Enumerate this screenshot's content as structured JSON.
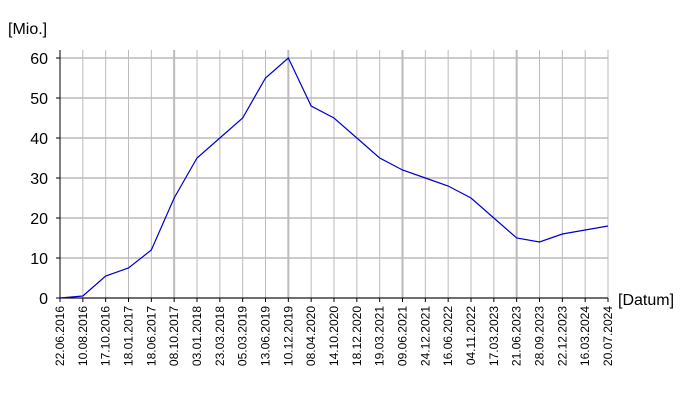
{
  "chart_data": {
    "type": "line",
    "y_label": "[Mio.]",
    "x_label": "[Datum]",
    "categories": [
      "22.06.2016",
      "10.08.2016",
      "17.10.2016",
      "18.01.2017",
      "18.06.2017",
      "08.10.2017",
      "03.01.2018",
      "23.03.2018",
      "05.03.2019",
      "13.06.2019",
      "10.12.2019",
      "08.04.2020",
      "14.10.2020",
      "18.12.2020",
      "19.03.2021",
      "09.06.2021",
      "24.12.2021",
      "16.06.2022",
      "04.11.2022",
      "17.03.2023",
      "21.06.2023",
      "28.09.2023",
      "22.12.2023",
      "16.03.2024",
      "20.07.2024"
    ],
    "values": [
      0,
      0.5,
      5.5,
      7.5,
      12,
      25,
      35,
      40,
      45,
      55,
      60,
      48,
      45,
      40,
      35,
      32,
      30,
      28,
      25,
      20,
      15,
      14,
      16,
      17,
      18
    ],
    "color": "#0000cc",
    "ylim": [
      0,
      60
    ],
    "yticks": [
      0,
      10,
      20,
      30,
      40,
      50,
      60
    ],
    "grid": true
  }
}
